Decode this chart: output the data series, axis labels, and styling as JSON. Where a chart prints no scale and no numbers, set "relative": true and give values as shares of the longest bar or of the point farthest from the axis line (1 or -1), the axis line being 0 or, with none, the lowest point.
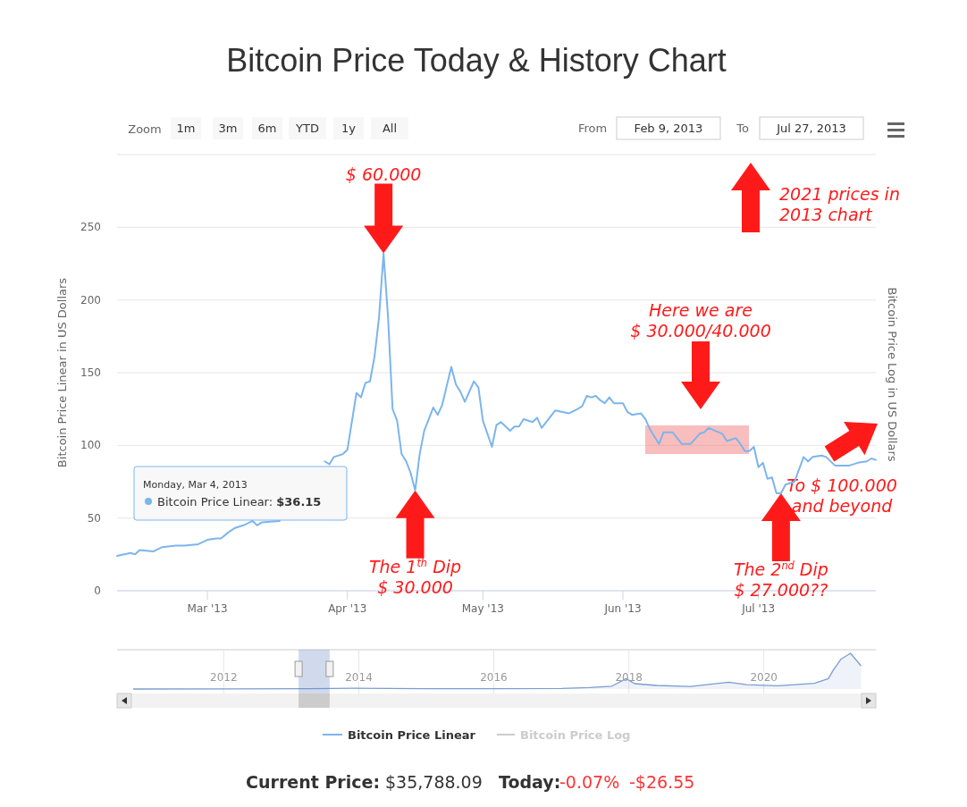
{
  "chart_data": [
    {
      "type": "line",
      "title": "Bitcoin Price Today & History Chart",
      "ylabel": "Bitcoin Price Linear in US Dollars",
      "y2label": "Bitcoin Price Log in US Dollars",
      "x": [
        "2013-02-09",
        "2013-02-12",
        "2013-02-13",
        "2013-02-14",
        "2013-02-17",
        "2013-02-19",
        "2013-02-22",
        "2013-02-24",
        "2013-02-27",
        "2013-03-01",
        "2013-03-03",
        "2013-03-04",
        "2013-03-06",
        "2013-03-07",
        "2013-03-09",
        "2013-03-11",
        "2013-03-12",
        "2013-03-13",
        "2013-03-17",
        "2013-03-20",
        "2013-03-21",
        "2013-03-23",
        "2013-03-24",
        "2013-03-26",
        "2013-03-27",
        "2013-03-28",
        "2013-03-29",
        "2013-03-31",
        "2013-04-01",
        "2013-04-03",
        "2013-04-04",
        "2013-04-05",
        "2013-04-06",
        "2013-04-07",
        "2013-04-08",
        "2013-04-09",
        "2013-04-10",
        "2013-04-11",
        "2013-04-12",
        "2013-04-13",
        "2013-04-14",
        "2013-04-15",
        "2013-04-16",
        "2013-04-17",
        "2013-04-18",
        "2013-04-20",
        "2013-04-21",
        "2013-04-22",
        "2013-04-23",
        "2013-04-24",
        "2013-04-25",
        "2013-04-26",
        "2013-04-27",
        "2013-04-29",
        "2013-04-30",
        "2013-05-01",
        "2013-05-03",
        "2013-05-04",
        "2013-05-05",
        "2013-05-07",
        "2013-05-08",
        "2013-05-09",
        "2013-05-10",
        "2013-05-12",
        "2013-05-13",
        "2013-05-14",
        "2013-05-17",
        "2013-05-20",
        "2013-05-22",
        "2013-05-23",
        "2013-05-24",
        "2013-05-25",
        "2013-05-26",
        "2013-05-27",
        "2013-05-28",
        "2013-05-29",
        "2013-05-30",
        "2013-06-01",
        "2013-06-02",
        "2013-06-03",
        "2013-06-05",
        "2013-06-06",
        "2013-06-07",
        "2013-06-09",
        "2013-06-10",
        "2013-06-12",
        "2013-06-14",
        "2013-06-16",
        "2013-06-18",
        "2013-06-19",
        "2013-06-20",
        "2013-06-23",
        "2013-06-24",
        "2013-06-26",
        "2013-06-27",
        "2013-06-28",
        "2013-06-29",
        "2013-06-30",
        "2013-07-01",
        "2013-07-02",
        "2013-07-03",
        "2013-07-04",
        "2013-07-05",
        "2013-07-06",
        "2013-07-07",
        "2013-07-09",
        "2013-07-11",
        "2013-07-12",
        "2013-07-13",
        "2013-07-15",
        "2013-07-16",
        "2013-07-18",
        "2013-07-21",
        "2013-07-23",
        "2013-07-25",
        "2013-07-26",
        "2013-07-27"
      ],
      "series": [
        {
          "name": "Bitcoin Price Linear",
          "color": "#7cb5ec",
          "values": [
            24,
            26,
            25,
            28,
            27,
            30,
            31,
            31,
            32,
            35,
            36,
            36,
            41,
            43,
            45,
            48,
            45,
            47,
            48,
            null,
            null,
            null,
            null,
            null,
            89,
            87,
            92,
            94,
            97,
            136,
            133,
            143,
            144,
            161,
            188,
            232,
            188,
            125,
            117,
            94,
            89,
            81,
            69,
            94,
            110,
            126,
            121,
            128,
            141,
            154,
            142,
            137,
            130,
            144,
            140,
            117,
            99,
            114,
            116,
            110,
            113,
            113,
            118,
            116,
            119,
            112,
            124,
            122,
            125,
            127,
            134,
            133,
            134,
            131,
            129,
            133,
            129,
            129,
            123,
            121,
            122,
            118,
            111,
            101,
            109,
            109,
            101,
            101,
            108,
            109,
            112,
            108,
            103,
            105,
            101,
            96,
            96,
            99,
            85,
            88,
            77,
            78,
            67,
            67,
            73,
            75,
            92,
            89,
            92,
            93,
            92,
            86,
            86,
            88,
            89,
            91,
            90
          ]
        }
      ],
      "xlim": [
        "2013-02-09",
        "2013-07-27"
      ],
      "xticks": [
        {
          "value": "2013-03-01",
          "label": "Mar '13"
        },
        {
          "value": "2013-04-01",
          "label": "Apr '13"
        },
        {
          "value": "2013-05-01",
          "label": "May '13"
        },
        {
          "value": "2013-06-01",
          "label": "Jun '13"
        },
        {
          "value": "2013-07-01",
          "label": "Jul '13"
        }
      ],
      "ylim": [
        0,
        300
      ],
      "yticks": [
        0,
        50,
        100,
        150,
        200,
        250,
        {
          "value": 300,
          "label": null
        }
      ],
      "grid": "y",
      "legend": "bottom",
      "annotations": [
        "$ 60.000",
        "The 1$^{th}$ Dip\n$ 30.000",
        "Here we are\n$ 30.000/40.000",
        "Monday, Mar 4, 2013\nBitcoin Price Linear: $36.15",
        "2021 prices in\n2013 chart",
        "To $ 100.000\nand beyond",
        "The 2$^{nd}$ Dip\n$ 27.000??",
        "Zoom",
        "1m",
        "3m",
        "6m",
        "YTD",
        "1y",
        "All",
        "From",
        "Feb 9, 2013",
        "To",
        "Jul 27, 2013",
        "Current Price:",
        "$35,788.09",
        "Today:",
        "-0.07%",
        "-$26.55",
        "Bitcoin Price Log"
      ]
    },
    {
      "type": "area",
      "relative": true,
      "color": "#7a9cd0",
      "x": [
        "2010-08-29",
        "2012-01-01",
        "2013-04-10",
        "2013-12-01",
        "2015-01-01",
        "2016-01-01",
        "2017-01-01",
        "2017-06-01",
        "2017-10-01",
        "2017-12-17",
        "2018-02-01",
        "2018-06-01",
        "2018-12-01",
        "2019-06-25",
        "2019-10-01",
        "2020-03-15",
        "2020-07-01",
        "2020-10-01",
        "2020-12-15",
        "2021-01-10",
        "2021-02-20",
        "2021-04-14",
        "2021-06-10"
      ],
      "values": [
        0,
        0.005,
        0.01,
        0.02,
        0.008,
        0.008,
        0.015,
        0.04,
        0.08,
        0.29,
        0.15,
        0.1,
        0.07,
        0.19,
        0.12,
        0.09,
        0.13,
        0.16,
        0.29,
        0.52,
        0.83,
        1,
        0.65
      ],
      "xlim": [
        "2010-06-03",
        "2021-08-29"
      ],
      "xticks": [
        "2012",
        "2014",
        "2016",
        "2018",
        "2020"
      ],
      "grid": "x"
    }
  ]
}
